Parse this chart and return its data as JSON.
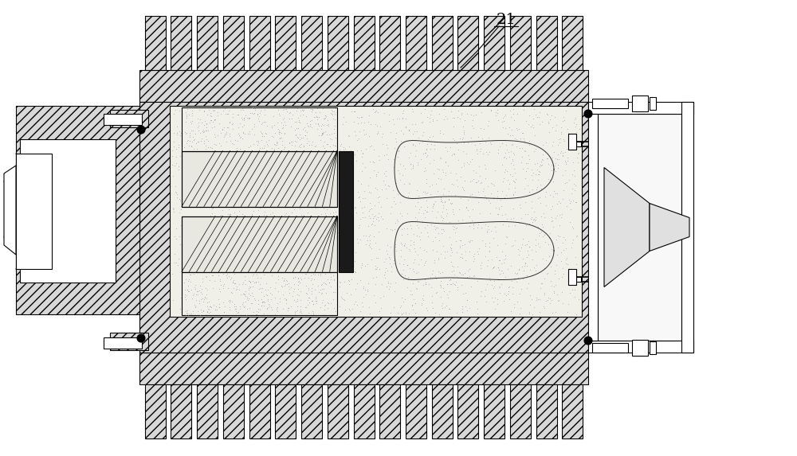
{
  "bg_color": "#ffffff",
  "lc": "#000000",
  "fig_width": 10.0,
  "fig_height": 5.73,
  "dpi": 100,
  "hatch_fill": "#d8d8d8",
  "inner_fill": "#f0efe8",
  "white": "#ffffff"
}
